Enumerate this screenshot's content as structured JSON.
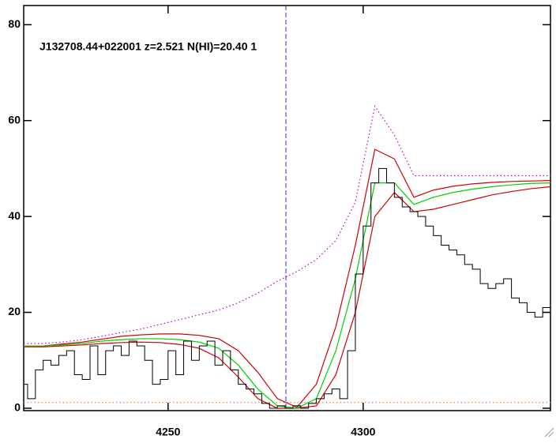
{
  "chart_data": {
    "type": "line",
    "annotation": "J132708.44+022001 z=2.521 N(HI)=20.40 1",
    "xlim": [
      4213,
      4348
    ],
    "ylim": [
      -0.5,
      84
    ],
    "xticks": [
      4250,
      4300
    ],
    "yticks": [
      0,
      20,
      40,
      60,
      80
    ],
    "vline": 4280.2,
    "vline_color": "#3030e0",
    "flux": {
      "drawstyle": "steps",
      "color": "#000000",
      "x": [
        4213,
        4215,
        4217,
        4219,
        4221,
        4223,
        4225,
        4227,
        4229,
        4231,
        4233,
        4235,
        4237,
        4239,
        4241,
        4243,
        4245,
        4247,
        4249,
        4251,
        4253,
        4255,
        4257,
        4259,
        4261,
        4263,
        4265,
        4267,
        4269,
        4271,
        4273,
        4275,
        4277,
        4279,
        4281,
        4283,
        4285,
        4287,
        4289,
        4291,
        4293,
        4295,
        4297,
        4299,
        4301,
        4303,
        4305,
        4307,
        4309,
        4311,
        4313,
        4315,
        4317,
        4319,
        4321,
        4323,
        4325,
        4327,
        4329,
        4331,
        4333,
        4335,
        4337,
        4339,
        4341,
        4343,
        4345,
        4347
      ],
      "values": [
        5,
        2,
        8,
        10,
        9,
        11,
        12,
        7,
        6,
        13,
        7,
        12,
        13,
        11,
        14,
        13,
        10,
        5,
        6,
        12,
        7,
        14,
        10,
        13,
        14,
        9,
        12,
        8,
        5,
        4,
        3,
        1,
        0,
        0.5,
        0,
        0.5,
        0,
        1,
        2,
        3,
        4,
        2,
        12,
        28,
        38,
        47,
        50,
        47,
        44,
        42,
        41,
        40,
        38,
        36,
        34,
        33,
        32,
        30,
        29,
        26,
        25,
        26,
        27,
        23,
        22,
        20,
        19,
        21
      ]
    },
    "x": [
      4213,
      4218,
      4223,
      4228,
      4233,
      4238,
      4243,
      4248,
      4253,
      4258,
      4263,
      4268,
      4273,
      4278,
      4283,
      4288,
      4293,
      4298,
      4303,
      4308,
      4313,
      4318,
      4323,
      4328,
      4333,
      4338,
      4343,
      4348
    ],
    "series": [
      {
        "color": "#c000c0",
        "dash": "dotted",
        "values": [
          13.5,
          13.5,
          13.8,
          14.3,
          15,
          15.8,
          16.5,
          17.5,
          18.5,
          19.5,
          20.5,
          22,
          24,
          26.5,
          28.5,
          31,
          35,
          43,
          63,
          57,
          48.5,
          48.5,
          48.5,
          48.5,
          48.5,
          48.5,
          48.5,
          48.5
        ]
      },
      {
        "color": "#e08040",
        "dash": "dotted",
        "values": [
          1.2,
          1.2,
          1.2,
          1.2,
          1.2,
          1.2,
          1.2,
          1.2,
          1.2,
          1.2,
          1.2,
          1.2,
          1.2,
          1.2,
          1.2,
          1.2,
          1.2,
          1.2,
          1.2,
          1.2,
          1.2,
          1.2,
          1.2,
          1.2,
          1.2,
          1.2,
          1.2,
          1.2
        ]
      },
      {
        "color": "#d00000",
        "dash": "solid",
        "values": [
          13,
          13,
          13.4,
          13.8,
          14.4,
          15,
          15.3,
          15.5,
          15.5,
          15.2,
          14.5,
          12,
          7.5,
          2,
          0.2,
          5,
          17,
          34,
          54,
          52,
          44,
          45.5,
          46.3,
          46.8,
          47.1,
          47.3,
          47.4,
          47.5
        ]
      },
      {
        "color": "#d00000",
        "dash": "solid",
        "values": [
          12.8,
          12.8,
          13,
          13.2,
          13.5,
          13.7,
          13.8,
          13.7,
          13.3,
          12.5,
          10.5,
          6.5,
          2,
          0,
          0,
          0.5,
          7,
          20,
          40,
          45,
          41,
          41.5,
          42.5,
          43.5,
          44.5,
          45.2,
          45.8,
          46.2
        ]
      },
      {
        "color": "#00d000",
        "dash": "solid",
        "values": [
          13,
          13,
          13.2,
          13.5,
          14,
          14.3,
          14.5,
          14.5,
          14.3,
          13.8,
          12.5,
          9,
          4,
          0.5,
          0,
          2,
          12,
          27,
          47,
          47,
          42.5,
          44,
          45,
          45.7,
          46.2,
          46.6,
          46.9,
          47
        ]
      }
    ]
  }
}
